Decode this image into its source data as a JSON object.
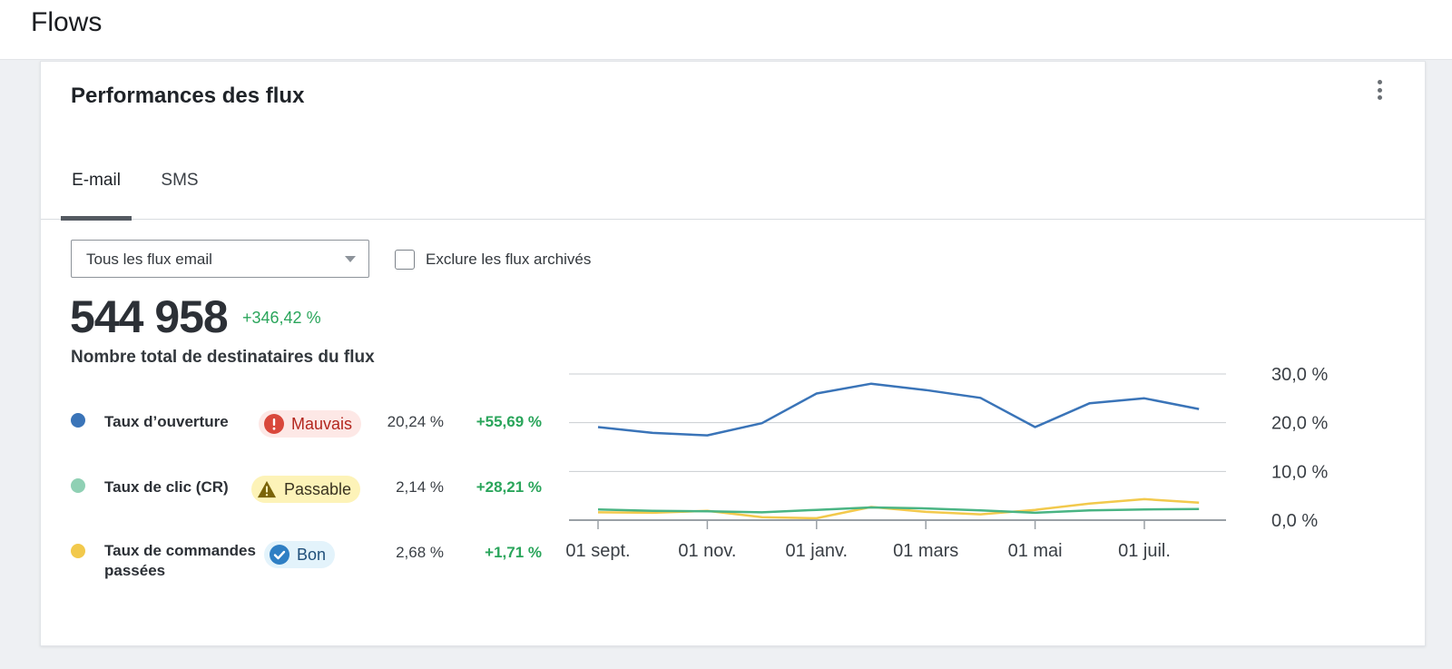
{
  "page": {
    "title": "Flows"
  },
  "card": {
    "title": "Performances des flux",
    "tabs": [
      {
        "label": "E-mail",
        "active": true
      },
      {
        "label": "SMS",
        "active": false
      }
    ],
    "filter": {
      "selected": "Tous les flux email"
    },
    "exclude_archived": {
      "label": "Exclure les flux archivés",
      "checked": false
    },
    "total": {
      "value": "544 958",
      "delta": "+346,42 %",
      "label": "Nombre total de destinataires du flux"
    },
    "metrics": [
      {
        "name": "Taux d’ouverture",
        "color": "#3a74b8",
        "badge": "Mauvais",
        "badge_kind": "bad",
        "value": "20,24 %",
        "delta": "+55,69 %"
      },
      {
        "name": "Taux de clic (CR)",
        "color": "#8fd0b4",
        "badge": "Passable",
        "badge_kind": "fair",
        "value": "2,14 %",
        "delta": "+28,21 %"
      },
      {
        "name": "Taux de commandes passées",
        "color": "#f2c94c",
        "badge": "Bon",
        "badge_kind": "good",
        "value": "2,68 %",
        "delta": "+1,71 %"
      }
    ]
  },
  "chart_data": {
    "type": "line",
    "x_tick_labels": [
      "01 sept.",
      "01 nov.",
      "01 janv.",
      "01 mars",
      "01 mai",
      "01 juil."
    ],
    "y_tick_labels": [
      "30,0 %",
      "20,0 %",
      "10,0 %",
      "0,0 %"
    ],
    "ylim": [
      0,
      30
    ],
    "grid": true,
    "series": [
      {
        "color": "#3a74b8",
        "values": [
          19.1,
          17.9,
          17.4,
          19.9,
          26.0,
          28.0,
          26.7,
          25.1,
          19.1,
          24.0,
          25.0,
          22.8
        ]
      },
      {
        "color": "#49b483",
        "values": [
          2.2,
          1.9,
          1.8,
          1.6,
          2.1,
          2.6,
          2.4,
          2.0,
          1.5,
          2.0,
          2.2,
          2.3
        ]
      },
      {
        "color": "#f2c94c",
        "values": [
          1.6,
          1.5,
          1.9,
          0.6,
          0.4,
          2.7,
          1.7,
          1.2,
          2.1,
          3.4,
          4.3,
          3.6
        ]
      }
    ]
  }
}
